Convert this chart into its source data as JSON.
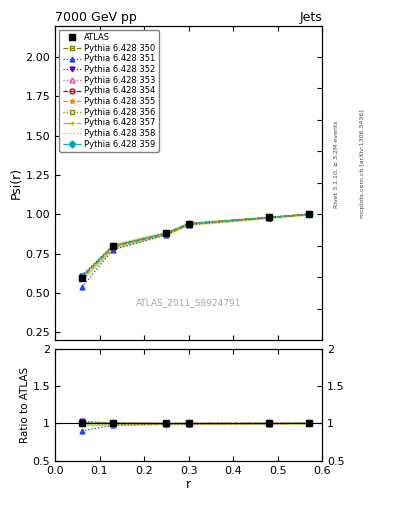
{
  "title_left": "7000 GeV pp",
  "title_right": "Jets",
  "ylabel_main": "Psi(r)",
  "ylabel_ratio": "Ratio to ATLAS",
  "xlabel": "r",
  "watermark": "ATLAS_2011_S8924791",
  "right_label1": "Rivet 3.1.10, ≥ 3.2M events",
  "right_label2": "mcplots.cern.ch [arXiv:1306.3436]",
  "r_values": [
    0.06,
    0.13,
    0.25,
    0.3,
    0.48,
    0.57
  ],
  "atlas_data": [
    0.595,
    0.795,
    0.88,
    0.94,
    0.98,
    1.0
  ],
  "atlas_err": [
    0.015,
    0.015,
    0.01,
    0.008,
    0.005,
    0.003
  ],
  "series": [
    {
      "label": "Pythia 6.428 350",
      "color": "#808000",
      "linestyle": "--",
      "marker": "s",
      "markerfacecolor": "none",
      "values": [
        0.597,
        0.795,
        0.878,
        0.938,
        0.979,
        1.0
      ]
    },
    {
      "label": "Pythia 6.428 351",
      "color": "#2244ff",
      "linestyle": ":",
      "marker": "^",
      "markerfacecolor": "#2244ff",
      "values": [
        0.535,
        0.775,
        0.87,
        0.933,
        0.977,
        1.0
      ]
    },
    {
      "label": "Pythia 6.428 352",
      "color": "#6600cc",
      "linestyle": ":",
      "marker": "v",
      "markerfacecolor": "#6600cc",
      "values": [
        0.61,
        0.798,
        0.879,
        0.938,
        0.979,
        1.0
      ]
    },
    {
      "label": "Pythia 6.428 353",
      "color": "#ff44aa",
      "linestyle": ":",
      "marker": "^",
      "markerfacecolor": "none",
      "values": [
        0.595,
        0.793,
        0.877,
        0.938,
        0.979,
        1.0
      ]
    },
    {
      "label": "Pythia 6.428 354",
      "color": "#cc0000",
      "linestyle": "--",
      "marker": "o",
      "markerfacecolor": "none",
      "values": [
        0.595,
        0.793,
        0.877,
        0.938,
        0.979,
        1.0
      ]
    },
    {
      "label": "Pythia 6.428 355",
      "color": "#ff8800",
      "linestyle": "--",
      "marker": "*",
      "markerfacecolor": "none",
      "values": [
        0.595,
        0.793,
        0.877,
        0.938,
        0.979,
        1.0
      ]
    },
    {
      "label": "Pythia 6.428 356",
      "color": "#888800",
      "linestyle": ":",
      "marker": "s",
      "markerfacecolor": "none",
      "values": [
        0.598,
        0.796,
        0.879,
        0.939,
        0.98,
        1.0
      ]
    },
    {
      "label": "Pythia 6.428 357",
      "color": "#ccaa00",
      "linestyle": "-.",
      "marker": "+",
      "markerfacecolor": "none",
      "values": [
        0.596,
        0.793,
        0.877,
        0.938,
        0.979,
        1.0
      ]
    },
    {
      "label": "Pythia 6.428 358",
      "color": "#aacc00",
      "linestyle": ":",
      "marker": "None",
      "markerfacecolor": "none",
      "values": [
        0.598,
        0.796,
        0.878,
        0.939,
        0.98,
        1.0
      ]
    },
    {
      "label": "Pythia 6.428 359",
      "color": "#00aaaa",
      "linestyle": "--",
      "marker": "D",
      "markerfacecolor": "#00aaaa",
      "values": [
        0.598,
        0.796,
        0.878,
        0.939,
        0.98,
        1.0
      ]
    }
  ],
  "ylim_main": [
    0.2,
    2.2
  ],
  "ylim_ratio": [
    0.5,
    2.0
  ],
  "band_color": "#aacc00",
  "band_alpha": 0.5,
  "fig_width": 3.93,
  "fig_height": 5.12,
  "dpi": 100
}
